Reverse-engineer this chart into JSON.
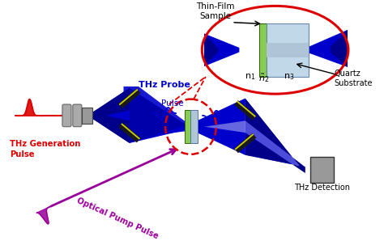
{
  "bg_color": "#ffffff",
  "blue_dark": "#00008B",
  "blue_mid": "#0000CD",
  "blue_light": "#4444ff",
  "mirror_dark": "#1a1a1a",
  "mirror_yellow": "#cccc00",
  "sample_green": "#88cc55",
  "sample_gray": "#aec6d8",
  "detector_color": "#888888",
  "detector_edge": "#444444",
  "lens_color": "#aaaaaa",
  "red_color": "#dd0000",
  "pump_color": "#990099",
  "probe_color": "#0000cc",
  "thz_gen_color": "#dd0000",
  "label_thinfilm": "Thin-Film\nSample",
  "label_quartz": "Quartz\nSubstrate",
  "label_thzprobe": "THz Probe",
  "label_pulse": "Pulse",
  "label_thzgen": "THz Generation\nPulse",
  "label_pump": "Optical Pump Pulse",
  "label_detection": "THz Detection"
}
